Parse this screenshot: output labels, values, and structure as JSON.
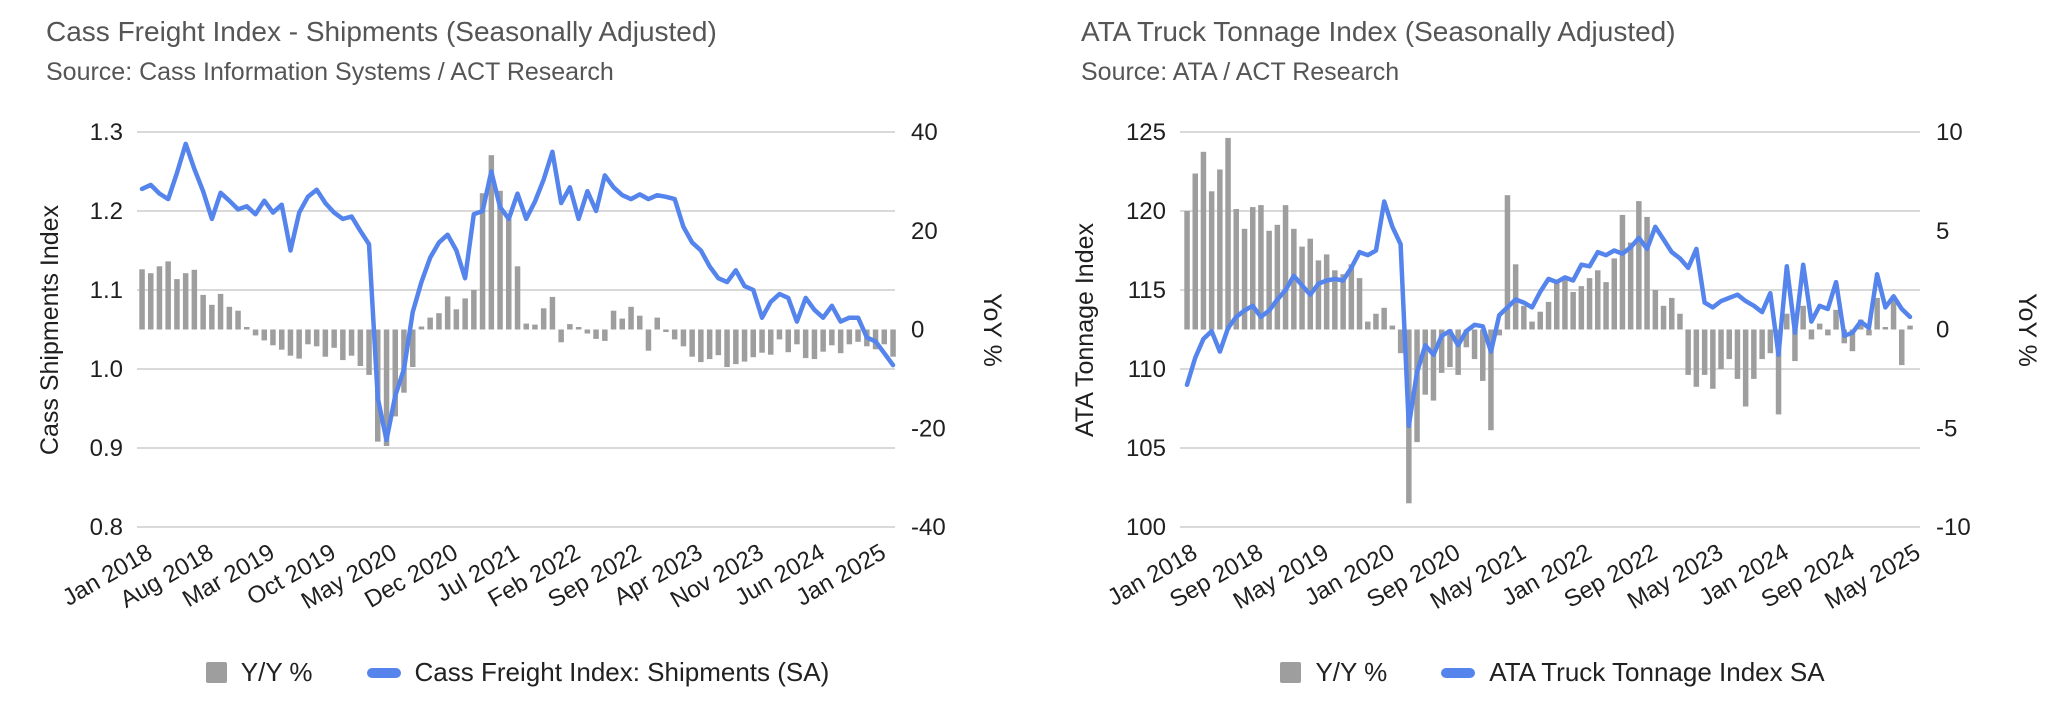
{
  "page": {
    "background": "#ffffff"
  },
  "charts": [
    {
      "title": "Cass Freight Index - Shipments (Seasonally Adjusted)",
      "source": "Source: Cass Information Systems / ACT Research",
      "legend": [
        {
          "label": "Y/Y %",
          "swatch": "bar"
        },
        {
          "label": "Cass Freight Index: Shipments (SA)",
          "swatch": "line"
        }
      ],
      "colors": {
        "bar": "#9e9e9e",
        "line": "#5585ec",
        "grid": "#d9d9d9",
        "axis_text": "#1f1f1f",
        "title_text": "#555555"
      },
      "chart_data": {
        "type": "combo bar+line (dual axis)",
        "title": "Cass Freight Index - Shipments (Seasonally Adjusted)",
        "x_range": [
          "Jan 2018",
          "Mar 2025"
        ],
        "n_points": 87,
        "grid": true,
        "legend_position": "bottom",
        "left_axis": {
          "label": "Cass Shipments Index",
          "min": 0.8,
          "max": 1.3,
          "ticks": [
            0.8,
            0.9,
            1.0,
            1.1,
            1.2,
            1.3
          ],
          "tick_labels": [
            "0.8",
            "0.9",
            "1.0",
            "1.1",
            "1.2",
            "1.3"
          ]
        },
        "right_axis": {
          "label": "YoY %",
          "min": -40,
          "max": 40,
          "ticks": [
            -40,
            -20,
            0,
            20,
            40
          ],
          "tick_labels": [
            "-40",
            "-20",
            "0",
            "20",
            "40"
          ]
        },
        "x_ticks": [
          {
            "i": 0,
            "label": "Jan 2018"
          },
          {
            "i": 7,
            "label": "Aug 2018"
          },
          {
            "i": 14,
            "label": "Mar 2019"
          },
          {
            "i": 21,
            "label": "Oct 2019"
          },
          {
            "i": 28,
            "label": "May 2020"
          },
          {
            "i": 35,
            "label": "Dec 2020"
          },
          {
            "i": 42,
            "label": "Jul 2021"
          },
          {
            "i": 49,
            "label": "Feb 2022"
          },
          {
            "i": 56,
            "label": "Sep 2022"
          },
          {
            "i": 63,
            "label": "Apr 2023"
          },
          {
            "i": 70,
            "label": "Nov 2023"
          },
          {
            "i": 77,
            "label": "Jun 2024"
          },
          {
            "i": 84,
            "label": "Jan 2025"
          }
        ],
        "series": {
          "bars": {
            "name": "Y/Y %",
            "axis": "right",
            "values": [
              12.2,
              11.4,
              12.8,
              13.8,
              10.2,
              11.4,
              12.1,
              7.0,
              5.0,
              7.2,
              4.6,
              3.8,
              0.4,
              -1.2,
              -2.2,
              -3.2,
              -4.1,
              -5.3,
              -5.9,
              -3.0,
              -3.4,
              -5.5,
              -3.7,
              -6.2,
              -5.3,
              -7.4,
              -9.2,
              -22.7,
              -23.6,
              -17.6,
              -12.8,
              -7.6,
              0.6,
              2.4,
              3.3,
              6.7,
              4.1,
              6.3,
              8.0,
              27.6,
              35.3,
              28.1,
              22.4,
              12.8,
              1.2,
              1.0,
              4.3,
              6.6,
              -2.6,
              1.1,
              0.4,
              -0.8,
              -1.9,
              -2.3,
              3.8,
              2.2,
              4.6,
              2.8,
              -4.3,
              2.4,
              -0.3,
              -2.0,
              -3.4,
              -5.5,
              -6.6,
              -6.0,
              -5.2,
              -7.6,
              -7.0,
              -6.5,
              -5.6,
              -4.7,
              -5.1,
              -2.0,
              -4.6,
              -3.0,
              -5.8,
              -6.0,
              -4.5,
              -3.2,
              -4.8,
              -3.0,
              -2.5,
              -3.4,
              -4.0,
              -3.0,
              -5.5
            ]
          },
          "line": {
            "name": "Cass Freight Index: Shipments (SA)",
            "axis": "left",
            "values": [
              1.228,
              1.233,
              1.222,
              1.215,
              1.248,
              1.285,
              1.253,
              1.225,
              1.19,
              1.223,
              1.213,
              1.202,
              1.206,
              1.196,
              1.213,
              1.198,
              1.208,
              1.15,
              1.198,
              1.218,
              1.227,
              1.21,
              1.198,
              1.19,
              1.193,
              1.175,
              1.158,
              0.963,
              0.91,
              0.966,
              1.0,
              1.072,
              1.11,
              1.141,
              1.16,
              1.17,
              1.15,
              1.115,
              1.196,
              1.2,
              1.25,
              1.205,
              1.19,
              1.222,
              1.19,
              1.212,
              1.24,
              1.275,
              1.21,
              1.23,
              1.19,
              1.225,
              1.2,
              1.245,
              1.23,
              1.22,
              1.215,
              1.221,
              1.215,
              1.22,
              1.218,
              1.215,
              1.18,
              1.16,
              1.15,
              1.13,
              1.115,
              1.11,
              1.125,
              1.105,
              1.1,
              1.065,
              1.085,
              1.095,
              1.09,
              1.06,
              1.09,
              1.075,
              1.065,
              1.08,
              1.06,
              1.065,
              1.065,
              1.04,
              1.035,
              1.02,
              1.005
            ]
          }
        }
      }
    },
    {
      "title": "ATA Truck Tonnage Index (Seasonally Adjusted)",
      "source": "Source: ATA / ACT Research",
      "legend": [
        {
          "label": "Y/Y %",
          "swatch": "bar"
        },
        {
          "label": "ATA Truck Tonnage Index SA",
          "swatch": "line"
        }
      ],
      "colors": {
        "bar": "#9e9e9e",
        "line": "#5585ec",
        "grid": "#d9d9d9",
        "axis_text": "#1f1f1f",
        "title_text": "#555555"
      },
      "chart_data": {
        "type": "combo bar+line (dual axis)",
        "title": "ATA Truck Tonnage Index (Seasonally Adjusted)",
        "x_range": [
          "Jan 2018",
          "May 2025"
        ],
        "n_points": 89,
        "grid": true,
        "legend_position": "bottom",
        "left_axis": {
          "label": "ATA Tonnage Index",
          "min": 100,
          "max": 125,
          "ticks": [
            100,
            105,
            110,
            115,
            120,
            125
          ],
          "tick_labels": [
            "100",
            "105",
            "110",
            "115",
            "120",
            "125"
          ]
        },
        "right_axis": {
          "label": "YoY %",
          "min": -10,
          "max": 10,
          "ticks": [
            -10,
            -5,
            0,
            5,
            10
          ],
          "tick_labels": [
            "-10",
            "-5",
            "0",
            "5",
            "10"
          ]
        },
        "x_ticks": [
          {
            "i": 0,
            "label": "Jan 2018"
          },
          {
            "i": 8,
            "label": "Sep 2018"
          },
          {
            "i": 16,
            "label": "May 2019"
          },
          {
            "i": 24,
            "label": "Jan 2020"
          },
          {
            "i": 32,
            "label": "Sep 2020"
          },
          {
            "i": 40,
            "label": "May 2021"
          },
          {
            "i": 48,
            "label": "Jan 2022"
          },
          {
            "i": 56,
            "label": "Sep 2022"
          },
          {
            "i": 64,
            "label": "May 2023"
          },
          {
            "i": 72,
            "label": "Jan 2024"
          },
          {
            "i": 80,
            "label": "Sep 2024"
          },
          {
            "i": 88,
            "label": "May 2025"
          }
        ],
        "series": {
          "bars": {
            "name": "Y/Y %",
            "axis": "right",
            "values": [
              6.0,
              7.9,
              9.0,
              7.0,
              8.1,
              9.7,
              6.1,
              5.1,
              6.2,
              6.3,
              5.0,
              5.3,
              6.3,
              5.1,
              4.2,
              4.6,
              3.5,
              3.8,
              3.0,
              2.8,
              3.3,
              2.6,
              0.4,
              0.8,
              1.1,
              0.2,
              -1.2,
              -8.8,
              -5.7,
              -3.3,
              -3.6,
              -2.2,
              -1.9,
              -2.3,
              -0.9,
              -1.5,
              -2.6,
              -5.1,
              -0.3,
              6.8,
              3.3,
              1.2,
              0.4,
              0.9,
              1.4,
              2.4,
              2.7,
              1.9,
              2.2,
              2.6,
              3.0,
              2.4,
              3.6,
              5.8,
              4.4,
              6.5,
              5.7,
              2.0,
              1.2,
              1.6,
              0.8,
              -2.3,
              -2.9,
              -2.3,
              -3.0,
              -2.0,
              -1.5,
              -2.5,
              -3.9,
              -2.5,
              -1.5,
              -1.2,
              -4.3,
              0.8,
              -1.6,
              1.2,
              -0.5,
              0.3,
              -0.3,
              1.0,
              -0.7,
              -1.1,
              0.5,
              -0.3,
              1.6,
              0.1,
              1.5,
              -1.8,
              0.2
            ]
          },
          "line": {
            "name": "ATA Truck Tonnage Index SA",
            "axis": "left",
            "values": [
              109.0,
              110.7,
              111.9,
              112.4,
              111.1,
              112.6,
              113.3,
              113.7,
              114.0,
              113.3,
              113.7,
              114.4,
              115.0,
              115.9,
              115.3,
              114.7,
              115.4,
              115.6,
              115.7,
              115.6,
              116.4,
              117.4,
              117.2,
              117.5,
              120.6,
              119.0,
              117.9,
              106.4,
              109.8,
              111.5,
              110.9,
              112.1,
              112.4,
              111.5,
              112.4,
              112.8,
              112.7,
              111.1,
              113.4,
              113.9,
              114.4,
              114.2,
              113.9,
              114.9,
              115.7,
              115.5,
              115.8,
              115.6,
              116.6,
              116.5,
              117.4,
              117.2,
              117.5,
              117.3,
              117.7,
              118.3,
              117.6,
              119.0,
              118.2,
              117.4,
              117.0,
              116.4,
              117.6,
              114.2,
              113.9,
              114.3,
              114.5,
              114.7,
              114.3,
              114.0,
              113.6,
              114.8,
              110.9,
              116.5,
              112.3,
              116.6,
              113.0,
              114.0,
              113.8,
              115.5,
              112.1,
              112.3,
              113.0,
              112.6,
              116.0,
              113.9,
              114.6,
              113.8,
              113.3
            ]
          }
        }
      }
    }
  ]
}
